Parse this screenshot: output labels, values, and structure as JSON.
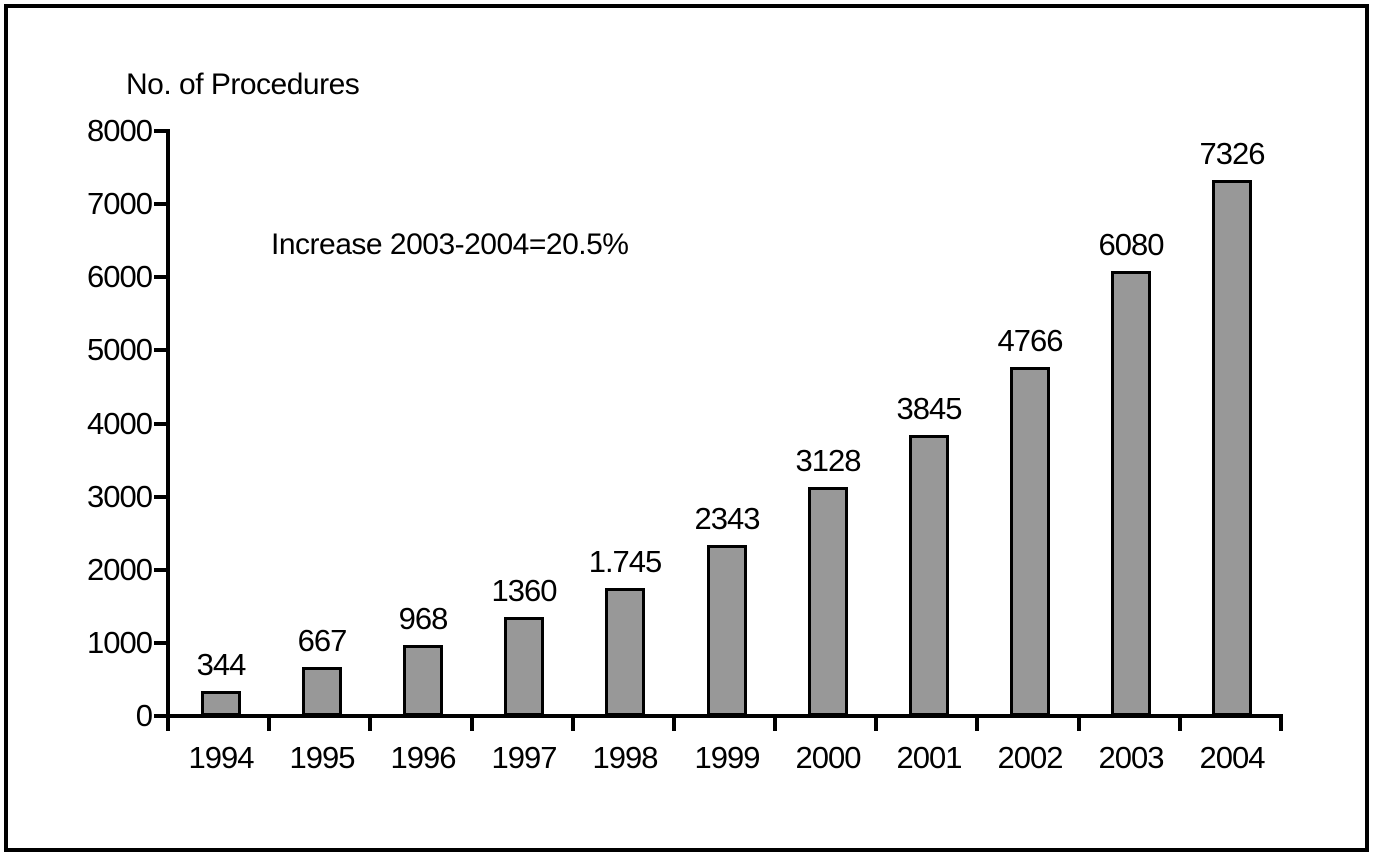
{
  "chart_data": {
    "type": "bar",
    "title": "No. of Procedures",
    "annotation": "Increase 2003-2004=20.5%",
    "categories": [
      "1994",
      "1995",
      "1996",
      "1997",
      "1998",
      "1999",
      "2000",
      "2001",
      "2002",
      "2003",
      "2004"
    ],
    "values": [
      344,
      667,
      968,
      1360,
      1745,
      2343,
      3128,
      3845,
      4766,
      6080,
      7326
    ],
    "value_labels": [
      "344",
      "667",
      "968",
      "1360",
      "1.745",
      "2343",
      "3128",
      "3845",
      "4766",
      "6080",
      "7326"
    ],
    "xlabel": "",
    "ylabel": "No. of Procedures",
    "ylim": [
      0,
      8000
    ],
    "ytick_step": 1000,
    "ytick_labels": [
      "0",
      "1000",
      "2000",
      "3000",
      "4000",
      "5000",
      "6000",
      "7000",
      "8000"
    ],
    "grid": false,
    "legend": "none",
    "bar_fill_color": "#989898",
    "bar_border_color": "#000000",
    "axis_color": "#000000",
    "text_color": "#000000"
  }
}
